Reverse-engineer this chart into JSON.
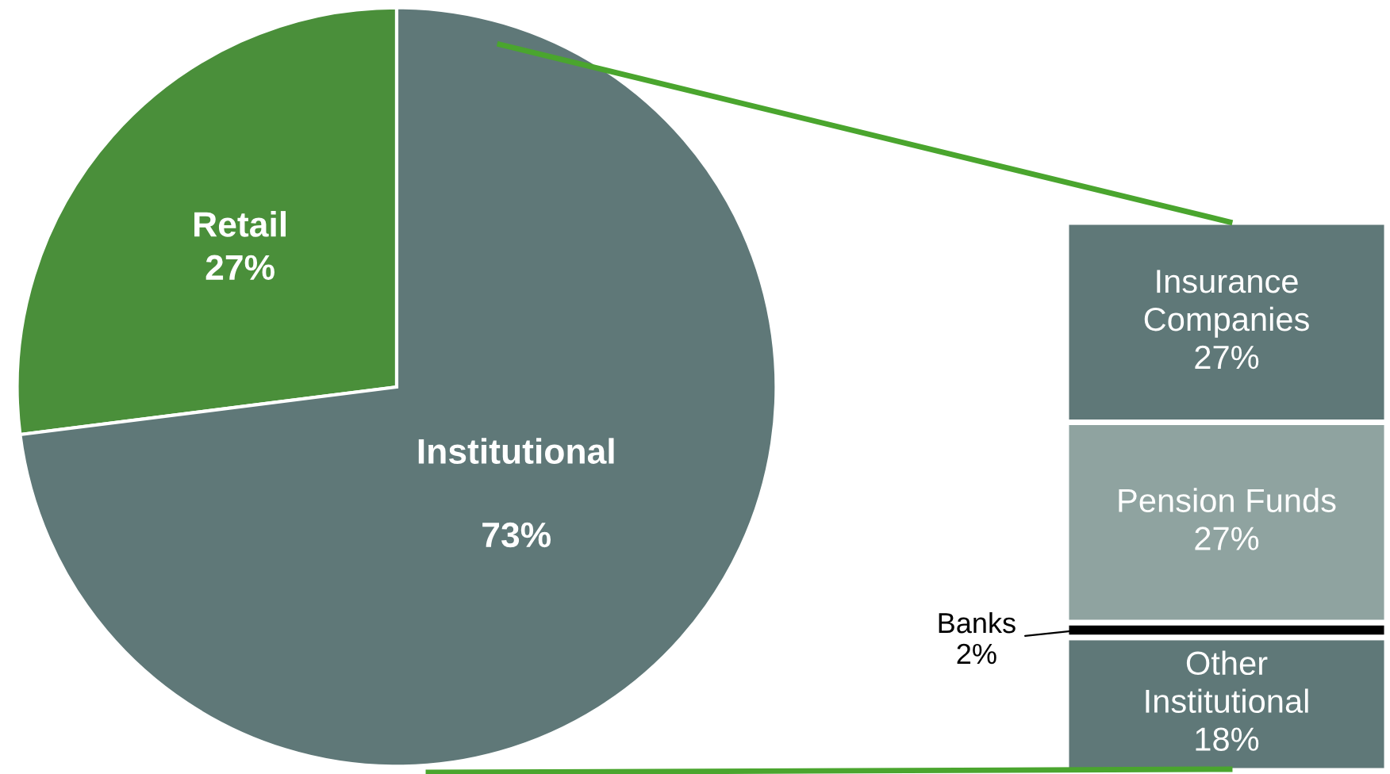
{
  "chart_data": [
    {
      "type": "pie",
      "categories": [
        "Retail",
        "Institutional"
      ],
      "values": [
        27,
        73
      ],
      "colors": [
        "#4a8f3a",
        "#5f7878"
      ],
      "value_labels": [
        "27%",
        "73%"
      ],
      "legend": false
    },
    {
      "type": "bar",
      "stacked": true,
      "categories": [
        null
      ],
      "legend": false,
      "series": [
        {
          "name": "Other Institutional",
          "color": "#5f7878",
          "values": [
            18
          ],
          "value_labels": [
            "18%"
          ]
        },
        {
          "name": "Banks",
          "color": "#000000",
          "values": [
            2
          ],
          "value_labels": [
            "2%"
          ]
        },
        {
          "name": "Pension Funds",
          "color": "#8fa3a0",
          "values": [
            27
          ],
          "value_labels": [
            "27%"
          ]
        },
        {
          "name": "Insurance Companies",
          "color": "#5f7878",
          "values": [
            27
          ],
          "value_labels": [
            "27%"
          ]
        }
      ]
    }
  ]
}
